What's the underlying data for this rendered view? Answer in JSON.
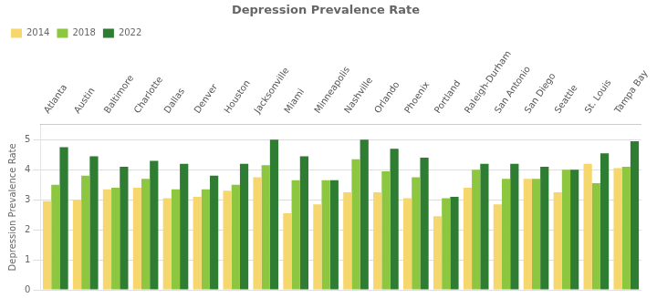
{
  "chart_data": {
    "type": "bar",
    "title": "Depression Prevalence Rate",
    "ylabel": "Depression Prevalence Rate",
    "categories": [
      "Atlanta",
      "Austin",
      "Baltimore",
      "Charlotte",
      "Dallas",
      "Denver",
      "Houston",
      "Jacksonville",
      "Miami",
      "Minneapolis",
      "Nashville",
      "Orlando",
      "Phoenix",
      "Portland",
      "Raleigh-Durham",
      "San Antonio",
      "San Diego",
      "Seattle",
      "St. Louis",
      "Tampa Bay"
    ],
    "series": [
      {
        "name": "2014",
        "color": "#F5D76E",
        "values": [
          2.95,
          3.0,
          3.35,
          3.4,
          3.05,
          3.1,
          3.3,
          3.75,
          2.55,
          2.85,
          3.25,
          3.25,
          3.05,
          2.45,
          3.4,
          2.85,
          3.7,
          3.25,
          4.2,
          4.05
        ]
      },
      {
        "name": "2018",
        "color": "#8DC63F",
        "values": [
          3.5,
          3.8,
          3.4,
          3.7,
          3.35,
          3.35,
          3.5,
          4.15,
          3.65,
          3.65,
          4.35,
          3.95,
          3.75,
          3.05,
          4.0,
          3.7,
          3.7,
          4.0,
          3.55,
          4.1
        ]
      },
      {
        "name": "2022",
        "color": "#2E7D32",
        "values": [
          4.75,
          4.45,
          4.1,
          4.3,
          4.2,
          3.8,
          4.2,
          5.0,
          4.45,
          3.65,
          5.0,
          4.7,
          4.4,
          3.1,
          4.2,
          4.2,
          4.1,
          4.0,
          4.55,
          4.95
        ]
      }
    ],
    "ylim": [
      0,
      5.5
    ],
    "yticks": [
      0,
      1,
      2,
      3,
      4,
      5
    ],
    "grid": true,
    "legend": "upper left"
  }
}
